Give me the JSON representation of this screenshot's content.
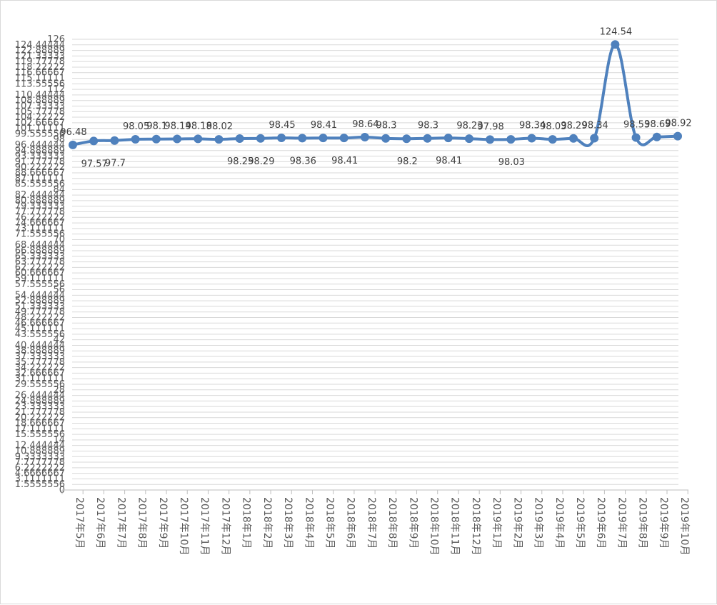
{
  "chart_data": {
    "type": "line",
    "title": "",
    "xlabel": "",
    "ylabel": "",
    "ylim": [
      0,
      126
    ],
    "grid": true,
    "legend": "none",
    "color": "#4f81bd",
    "y_ticks": [
      "0",
      "1.5555556",
      "3.1111111",
      "4.6666667",
      "6.2222222",
      "7.7777778",
      "9.3333333",
      "10.888889",
      "12.444444",
      "14",
      "15.555556",
      "17.111111",
      "18.666667",
      "20.222222",
      "21.777778",
      "23.333333",
      "24.888889",
      "26.444444",
      "28",
      "29.555556",
      "31.111111",
      "32.666667",
      "34.222222",
      "35.777778",
      "37.333333",
      "38.888889",
      "40.444444",
      "42",
      "43.555556",
      "45.111111",
      "46.666667",
      "48.222222",
      "49.777778",
      "51.333333",
      "52.888889",
      "54.444444",
      "56",
      "57.555556",
      "59.111111",
      "60.666667",
      "62.222222",
      "63.777778",
      "65.333333",
      "66.888889",
      "68.444444",
      "70",
      "71.555556",
      "73.111111",
      "74.666667",
      "76.222222",
      "77.777778",
      "79.333333",
      "80.888889",
      "82.444444",
      "84",
      "85.555556",
      "87.111111",
      "88.666667",
      "90.222222",
      "91.777778",
      "93.333333",
      "94.888889",
      "96.444444",
      "98",
      "99.555556",
      "101.11111",
      "102.66667",
      "104.22222",
      "105.77778",
      "107.33333",
      "108.88889",
      "110.44444",
      "112",
      "113.55556",
      "115.11111",
      "116.66667",
      "118.22222",
      "119.77778",
      "121.33333",
      "122.88889",
      "124.44444",
      "126"
    ],
    "categories": [
      "2017年5月",
      "2017年6月",
      "2017年7月",
      "2017年8月",
      "2017年9月",
      "2017年10月",
      "2017年11月",
      "2017年12月",
      "2018年1月",
      "2018年2月",
      "2018年3月",
      "2018年4月",
      "2018年5月",
      "2018年6月",
      "2018年7月",
      "2018年8月",
      "2018年9月",
      "2018年10月",
      "2018年11月",
      "2018年12月",
      "2019年1月",
      "2019年2月",
      "2019年3月",
      "2019年4月",
      "2019年5月",
      "2019年6月",
      "2019年7月",
      "2019年8月",
      "2019年9月",
      "2019年10月"
    ],
    "values": [
      96.48,
      97.57,
      97.7,
      98.05,
      98.1,
      98.14,
      98.18,
      98.02,
      98.25,
      98.29,
      98.45,
      98.36,
      98.41,
      98.41,
      98.64,
      98.3,
      98.2,
      98.3,
      98.41,
      98.23,
      97.98,
      98.03,
      98.34,
      98.03,
      98.29,
      98.34,
      124.54,
      98.53,
      98.69,
      98.92
    ],
    "data_labels": [
      "96.48",
      "97.57",
      "97.7",
      "98.05",
      "98.1",
      "98.14",
      "98.18",
      "98.02",
      "98.25",
      "98.29",
      "98.45",
      "98.36",
      "98.41",
      "98.41",
      "98.64",
      "98.3",
      "98.2",
      "98.3",
      "98.41",
      "98.23",
      "97.98",
      "98.03",
      "98.34",
      "98.03",
      "98.29",
      "98.34",
      "124.54",
      "98.53",
      "98.69",
      "98.92"
    ],
    "label_below": [
      false,
      true,
      true,
      false,
      false,
      false,
      false,
      false,
      true,
      true,
      false,
      true,
      false,
      true,
      false,
      false,
      true,
      false,
      true,
      false,
      false,
      true,
      false,
      false,
      false,
      false,
      false,
      false,
      false,
      false
    ]
  }
}
